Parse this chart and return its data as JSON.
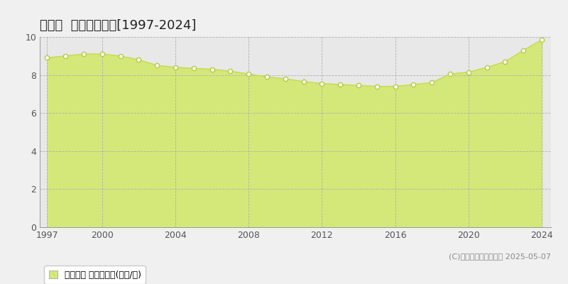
{
  "title": "金武町  基準地価推移[1997-2024]",
  "years": [
    1997,
    1998,
    1999,
    2000,
    2001,
    2002,
    2003,
    2004,
    2005,
    2006,
    2007,
    2008,
    2009,
    2010,
    2011,
    2012,
    2013,
    2014,
    2015,
    2016,
    2017,
    2018,
    2019,
    2020,
    2021,
    2022,
    2023,
    2024
  ],
  "values": [
    8.9,
    9.0,
    9.1,
    9.1,
    9.0,
    8.8,
    8.5,
    8.4,
    8.35,
    8.3,
    8.2,
    8.05,
    7.9,
    7.8,
    7.65,
    7.55,
    7.5,
    7.45,
    7.4,
    7.4,
    7.5,
    7.6,
    8.05,
    8.15,
    8.4,
    8.7,
    9.3,
    9.85
  ],
  "line_color": "#c8d94a",
  "fill_color": "#d4e87a",
  "fill_alpha": 1.0,
  "marker_color": "white",
  "marker_edge_color": "#b8c840",
  "bg_color": "#f0f0f0",
  "plot_bg_color": "#e8e8e8",
  "grid_color": "#aaaaaa",
  "ylim": [
    0,
    10
  ],
  "yticks": [
    0,
    2,
    4,
    6,
    8,
    10
  ],
  "xticks": [
    1997,
    2000,
    2004,
    2008,
    2012,
    2016,
    2020,
    2024
  ],
  "legend_label": "基準地価 平均坤単価(万円/坤)",
  "copyright_text": "(C)土地価格ドットコム 2025-05-07",
  "title_fontsize": 13,
  "tick_fontsize": 9,
  "legend_fontsize": 9,
  "copyright_fontsize": 8
}
